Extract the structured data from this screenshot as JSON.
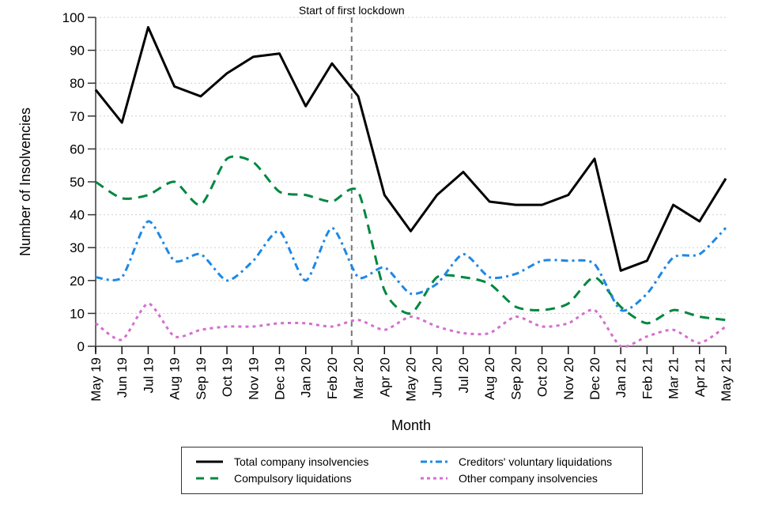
{
  "chart_data": {
    "type": "line",
    "title": "",
    "xlabel": "Month",
    "ylabel": "Number of Insolvencies",
    "ylim": [
      0,
      100
    ],
    "yticks": [
      0,
      10,
      20,
      30,
      40,
      50,
      60,
      70,
      80,
      90,
      100
    ],
    "grid": true,
    "legend_position": "bottom",
    "categories": [
      "May 19",
      "Jun 19",
      "Jul 19",
      "Aug 19",
      "Sep 19",
      "Oct 19",
      "Nov 19",
      "Dec 19",
      "Jan 20",
      "Feb 20",
      "Mar 20",
      "Apr 20",
      "May 20",
      "Jun 20",
      "Jul 20",
      "Aug 20",
      "Sep 20",
      "Oct 20",
      "Nov 20",
      "Dec 20",
      "Jan 21",
      "Feb 21",
      "Mar 21",
      "Apr 21",
      "May 21"
    ],
    "annotations": [
      {
        "text": "Start of first lockdown",
        "x_between": [
          "Feb 20",
          "Mar 20"
        ],
        "x_fraction": 0.75,
        "style": "dashed-vertical-line"
      }
    ],
    "series": [
      {
        "name": "Total company insolvencies",
        "color": "#000000",
        "style": "solid",
        "values": [
          78,
          68,
          97,
          79,
          76,
          83,
          88,
          89,
          73,
          86,
          76,
          46,
          35,
          46,
          53,
          44,
          43,
          43,
          46,
          57,
          23,
          26,
          43,
          38,
          51
        ]
      },
      {
        "name": "Compulsory liquidations",
        "color": "#00873f",
        "style": "dashed",
        "values": [
          50,
          45,
          46,
          50,
          43,
          57,
          56,
          47,
          46,
          44,
          47,
          17,
          10,
          21,
          21,
          19,
          12,
          11,
          13,
          21,
          12,
          7,
          11,
          9,
          8
        ]
      },
      {
        "name": "Creditors' voluntary liquidations",
        "color": "#1e88e5",
        "style": "dashdot",
        "values": [
          21,
          21,
          38,
          26,
          28,
          20,
          26,
          35,
          20,
          36,
          21,
          24,
          16,
          19,
          28,
          21,
          22,
          26,
          26,
          25,
          11,
          16,
          27,
          28,
          36
        ]
      },
      {
        "name": "Other company insolvencies",
        "color": "#d36fd0",
        "style": "dotted",
        "values": [
          7,
          2,
          13,
          3,
          5,
          6,
          6,
          7,
          7,
          6,
          8,
          5,
          9,
          6,
          4,
          4,
          9,
          6,
          7,
          11,
          0,
          3,
          5,
          1,
          6
        ]
      }
    ]
  },
  "legend": {
    "items": [
      {
        "label": "Total company insolvencies"
      },
      {
        "label": "Creditors' voluntary liquidations"
      },
      {
        "label": "Compulsory liquidations"
      },
      {
        "label": "Other company insolvencies"
      }
    ]
  }
}
